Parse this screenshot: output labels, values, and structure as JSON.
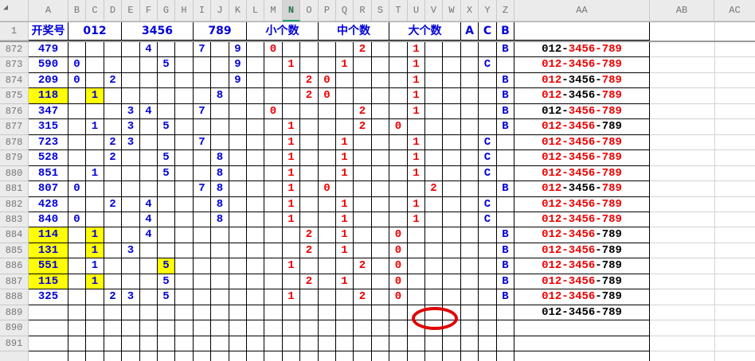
{
  "colors": {
    "digit_blue": "#0000d8",
    "count_red": "#ee0000",
    "plain_black": "#000000",
    "highlight_yellow": "#ffff00",
    "selected_green_text": "#217346",
    "selected_green_underline": "#21a366",
    "grid_black": "#000000",
    "default_gridline_gray": "#d4d4d4",
    "header_bg": "#ebebeb",
    "annotation_red": "#e00000"
  },
  "corner": {
    "select_all_icon": "select-all-triangle"
  },
  "column_headers": {
    "letters": [
      "A",
      "B",
      "C",
      "D",
      "E",
      "F",
      "G",
      "H",
      "I",
      "J",
      "K",
      "L",
      "M",
      "N",
      "O",
      "P",
      "Q",
      "R",
      "S",
      "T",
      "U",
      "V",
      "W",
      "X",
      "Y",
      "Z",
      "AA",
      "AB",
      "AC"
    ],
    "selected": "N"
  },
  "header_row": {
    "label": "1",
    "cells": [
      {
        "text": "开奖号",
        "from": "A",
        "to": "A"
      },
      {
        "text": "012",
        "from": "B",
        "to": "D"
      },
      {
        "text": "3456",
        "from": "E",
        "to": "H"
      },
      {
        "text": "789",
        "from": "I",
        "to": "K"
      },
      {
        "text": "小个数",
        "from": "L",
        "to": "O"
      },
      {
        "text": "中个数",
        "from": "P",
        "to": "S"
      },
      {
        "text": "大个数",
        "from": "T",
        "to": "W"
      },
      {
        "text": "A",
        "from": "X",
        "to": "X"
      },
      {
        "text": "C",
        "from": "Y",
        "to": "Y"
      },
      {
        "text": "B",
        "from": "Z",
        "to": "Z"
      },
      {
        "text": "",
        "from": "AA",
        "to": "AA"
      }
    ]
  },
  "rows": [
    {
      "num": "872",
      "cells": [
        {
          "col": "A",
          "v": "479"
        },
        {
          "col": "F",
          "v": "4"
        },
        {
          "col": "I",
          "v": "7"
        },
        {
          "col": "K",
          "v": "9"
        },
        {
          "col": "M",
          "v": "0"
        },
        {
          "col": "R",
          "v": "2"
        },
        {
          "col": "U",
          "v": "1"
        },
        {
          "col": "Z",
          "v": "B"
        }
      ],
      "aa": [
        {
          "t": "012",
          "c": "black"
        },
        {
          "t": "-",
          "c": "black"
        },
        {
          "t": "3456",
          "c": "red"
        },
        {
          "t": "-",
          "c": "red"
        },
        {
          "t": "789",
          "c": "red"
        }
      ]
    },
    {
      "num": "873",
      "cells": [
        {
          "col": "A",
          "v": "590"
        },
        {
          "col": "B",
          "v": "0"
        },
        {
          "col": "G",
          "v": "5"
        },
        {
          "col": "K",
          "v": "9"
        },
        {
          "col": "N",
          "v": "1"
        },
        {
          "col": "Q",
          "v": "1"
        },
        {
          "col": "U",
          "v": "1"
        },
        {
          "col": "Y",
          "v": "C"
        }
      ],
      "aa": [
        {
          "t": "012",
          "c": "red"
        },
        {
          "t": "-",
          "c": "red"
        },
        {
          "t": "3456",
          "c": "red"
        },
        {
          "t": "-",
          "c": "red"
        },
        {
          "t": "789",
          "c": "red"
        }
      ]
    },
    {
      "num": "874",
      "cells": [
        {
          "col": "A",
          "v": "209"
        },
        {
          "col": "B",
          "v": "0"
        },
        {
          "col": "D",
          "v": "2"
        },
        {
          "col": "K",
          "v": "9"
        },
        {
          "col": "O",
          "v": "2"
        },
        {
          "col": "P",
          "v": "0"
        },
        {
          "col": "U",
          "v": "1"
        },
        {
          "col": "Z",
          "v": "B"
        }
      ],
      "aa": [
        {
          "t": "012",
          "c": "red"
        },
        {
          "t": "-",
          "c": "black"
        },
        {
          "t": "3456",
          "c": "black"
        },
        {
          "t": "-",
          "c": "black"
        },
        {
          "t": "789",
          "c": "red"
        }
      ]
    },
    {
      "num": "875",
      "cells": [
        {
          "col": "A",
          "v": "118",
          "hl": true
        },
        {
          "col": "C",
          "v": "1",
          "hl": true
        },
        {
          "col": "J",
          "v": "8"
        },
        {
          "col": "O",
          "v": "2"
        },
        {
          "col": "P",
          "v": "0"
        },
        {
          "col": "U",
          "v": "1"
        },
        {
          "col": "Z",
          "v": "B"
        }
      ],
      "aa": [
        {
          "t": "012",
          "c": "red"
        },
        {
          "t": "-",
          "c": "black"
        },
        {
          "t": "3456",
          "c": "black"
        },
        {
          "t": "-",
          "c": "black"
        },
        {
          "t": "789",
          "c": "red"
        }
      ]
    },
    {
      "num": "876",
      "cells": [
        {
          "col": "A",
          "v": "347"
        },
        {
          "col": "E",
          "v": "3"
        },
        {
          "col": "F",
          "v": "4"
        },
        {
          "col": "I",
          "v": "7"
        },
        {
          "col": "M",
          "v": "0"
        },
        {
          "col": "R",
          "v": "2"
        },
        {
          "col": "U",
          "v": "1"
        },
        {
          "col": "Z",
          "v": "B"
        }
      ],
      "aa": [
        {
          "t": "012",
          "c": "black"
        },
        {
          "t": "-",
          "c": "black"
        },
        {
          "t": "3456",
          "c": "red"
        },
        {
          "t": "-",
          "c": "red"
        },
        {
          "t": "789",
          "c": "red"
        }
      ]
    },
    {
      "num": "877",
      "cells": [
        {
          "col": "A",
          "v": "315"
        },
        {
          "col": "C",
          "v": "1"
        },
        {
          "col": "E",
          "v": "3"
        },
        {
          "col": "G",
          "v": "5"
        },
        {
          "col": "N",
          "v": "1"
        },
        {
          "col": "R",
          "v": "2"
        },
        {
          "col": "T",
          "v": "0"
        },
        {
          "col": "Z",
          "v": "B"
        }
      ],
      "aa": [
        {
          "t": "012",
          "c": "red"
        },
        {
          "t": "-",
          "c": "red"
        },
        {
          "t": "3456",
          "c": "red"
        },
        {
          "t": "-",
          "c": "black"
        },
        {
          "t": "789",
          "c": "black"
        }
      ]
    },
    {
      "num": "878",
      "cells": [
        {
          "col": "A",
          "v": "723"
        },
        {
          "col": "D",
          "v": "2"
        },
        {
          "col": "E",
          "v": "3"
        },
        {
          "col": "I",
          "v": "7"
        },
        {
          "col": "N",
          "v": "1"
        },
        {
          "col": "Q",
          "v": "1"
        },
        {
          "col": "U",
          "v": "1"
        },
        {
          "col": "Y",
          "v": "C"
        }
      ],
      "aa": [
        {
          "t": "012",
          "c": "red"
        },
        {
          "t": "-",
          "c": "red"
        },
        {
          "t": "3456",
          "c": "red"
        },
        {
          "t": "-",
          "c": "red"
        },
        {
          "t": "789",
          "c": "red"
        }
      ]
    },
    {
      "num": "879",
      "cells": [
        {
          "col": "A",
          "v": "528"
        },
        {
          "col": "D",
          "v": "2"
        },
        {
          "col": "G",
          "v": "5"
        },
        {
          "col": "J",
          "v": "8"
        },
        {
          "col": "N",
          "v": "1"
        },
        {
          "col": "Q",
          "v": "1"
        },
        {
          "col": "U",
          "v": "1"
        },
        {
          "col": "Y",
          "v": "C"
        }
      ],
      "aa": [
        {
          "t": "012",
          "c": "red"
        },
        {
          "t": "-",
          "c": "red"
        },
        {
          "t": "3456",
          "c": "red"
        },
        {
          "t": "-",
          "c": "red"
        },
        {
          "t": "789",
          "c": "red"
        }
      ]
    },
    {
      "num": "880",
      "cells": [
        {
          "col": "A",
          "v": "851"
        },
        {
          "col": "C",
          "v": "1"
        },
        {
          "col": "G",
          "v": "5"
        },
        {
          "col": "J",
          "v": "8"
        },
        {
          "col": "N",
          "v": "1"
        },
        {
          "col": "Q",
          "v": "1"
        },
        {
          "col": "U",
          "v": "1"
        },
        {
          "col": "Y",
          "v": "C"
        }
      ],
      "aa": [
        {
          "t": "012",
          "c": "red"
        },
        {
          "t": "-",
          "c": "red"
        },
        {
          "t": "3456",
          "c": "red"
        },
        {
          "t": "-",
          "c": "red"
        },
        {
          "t": "789",
          "c": "red"
        }
      ]
    },
    {
      "num": "881",
      "cells": [
        {
          "col": "A",
          "v": "807"
        },
        {
          "col": "B",
          "v": "0"
        },
        {
          "col": "I",
          "v": "7"
        },
        {
          "col": "J",
          "v": "8"
        },
        {
          "col": "N",
          "v": "1"
        },
        {
          "col": "P",
          "v": "0"
        },
        {
          "col": "V",
          "v": "2"
        },
        {
          "col": "Z",
          "v": "B"
        }
      ],
      "aa": [
        {
          "t": "012",
          "c": "red"
        },
        {
          "t": "-",
          "c": "black"
        },
        {
          "t": "3456",
          "c": "black"
        },
        {
          "t": "-",
          "c": "black"
        },
        {
          "t": "789",
          "c": "red"
        }
      ]
    },
    {
      "num": "882",
      "cells": [
        {
          "col": "A",
          "v": "428"
        },
        {
          "col": "D",
          "v": "2"
        },
        {
          "col": "F",
          "v": "4"
        },
        {
          "col": "J",
          "v": "8"
        },
        {
          "col": "N",
          "v": "1"
        },
        {
          "col": "Q",
          "v": "1"
        },
        {
          "col": "U",
          "v": "1"
        },
        {
          "col": "Y",
          "v": "C"
        }
      ],
      "aa": [
        {
          "t": "012",
          "c": "red"
        },
        {
          "t": "-",
          "c": "red"
        },
        {
          "t": "3456",
          "c": "red"
        },
        {
          "t": "-",
          "c": "red"
        },
        {
          "t": "789",
          "c": "red"
        }
      ]
    },
    {
      "num": "883",
      "cells": [
        {
          "col": "A",
          "v": "840"
        },
        {
          "col": "B",
          "v": "0"
        },
        {
          "col": "F",
          "v": "4"
        },
        {
          "col": "J",
          "v": "8"
        },
        {
          "col": "N",
          "v": "1"
        },
        {
          "col": "Q",
          "v": "1"
        },
        {
          "col": "U",
          "v": "1"
        },
        {
          "col": "Y",
          "v": "C"
        }
      ],
      "aa": [
        {
          "t": "012",
          "c": "red"
        },
        {
          "t": "-",
          "c": "red"
        },
        {
          "t": "3456",
          "c": "red"
        },
        {
          "t": "-",
          "c": "red"
        },
        {
          "t": "789",
          "c": "red"
        }
      ]
    },
    {
      "num": "884",
      "cells": [
        {
          "col": "A",
          "v": "114",
          "hl": true
        },
        {
          "col": "C",
          "v": "1",
          "hl": true
        },
        {
          "col": "F",
          "v": "4"
        },
        {
          "col": "O",
          "v": "2"
        },
        {
          "col": "Q",
          "v": "1"
        },
        {
          "col": "T",
          "v": "0"
        },
        {
          "col": "Z",
          "v": "B"
        }
      ],
      "aa": [
        {
          "t": "012",
          "c": "red"
        },
        {
          "t": "-",
          "c": "red"
        },
        {
          "t": "3456",
          "c": "red"
        },
        {
          "t": "-",
          "c": "black"
        },
        {
          "t": "789",
          "c": "black"
        }
      ]
    },
    {
      "num": "885",
      "cells": [
        {
          "col": "A",
          "v": "131",
          "hl": true
        },
        {
          "col": "C",
          "v": "1",
          "hl": true
        },
        {
          "col": "E",
          "v": "3"
        },
        {
          "col": "O",
          "v": "2"
        },
        {
          "col": "Q",
          "v": "1"
        },
        {
          "col": "T",
          "v": "0"
        },
        {
          "col": "Z",
          "v": "B"
        }
      ],
      "aa": [
        {
          "t": "012",
          "c": "red"
        },
        {
          "t": "-",
          "c": "red"
        },
        {
          "t": "3456",
          "c": "red"
        },
        {
          "t": "-",
          "c": "black"
        },
        {
          "t": "789",
          "c": "black"
        }
      ]
    },
    {
      "num": "886",
      "cells": [
        {
          "col": "A",
          "v": "551",
          "hl": true
        },
        {
          "col": "C",
          "v": "1"
        },
        {
          "col": "G",
          "v": "5",
          "hl": true
        },
        {
          "col": "N",
          "v": "1"
        },
        {
          "col": "R",
          "v": "2"
        },
        {
          "col": "T",
          "v": "0"
        },
        {
          "col": "Z",
          "v": "B"
        }
      ],
      "aa": [
        {
          "t": "012",
          "c": "red"
        },
        {
          "t": "-",
          "c": "red"
        },
        {
          "t": "3456",
          "c": "red"
        },
        {
          "t": "-",
          "c": "black"
        },
        {
          "t": "789",
          "c": "black"
        }
      ]
    },
    {
      "num": "887",
      "cells": [
        {
          "col": "A",
          "v": "115",
          "hl": true
        },
        {
          "col": "C",
          "v": "1",
          "hl": true
        },
        {
          "col": "G",
          "v": "5"
        },
        {
          "col": "O",
          "v": "2"
        },
        {
          "col": "Q",
          "v": "1"
        },
        {
          "col": "T",
          "v": "0"
        },
        {
          "col": "Z",
          "v": "B"
        }
      ],
      "aa": [
        {
          "t": "012",
          "c": "red"
        },
        {
          "t": "-",
          "c": "red"
        },
        {
          "t": "3456",
          "c": "red"
        },
        {
          "t": "-",
          "c": "black"
        },
        {
          "t": "789",
          "c": "black"
        }
      ]
    },
    {
      "num": "888",
      "cells": [
        {
          "col": "A",
          "v": "325"
        },
        {
          "col": "D",
          "v": "2"
        },
        {
          "col": "E",
          "v": "3"
        },
        {
          "col": "G",
          "v": "5"
        },
        {
          "col": "N",
          "v": "1"
        },
        {
          "col": "R",
          "v": "2"
        },
        {
          "col": "T",
          "v": "0"
        },
        {
          "col": "Z",
          "v": "B"
        }
      ],
      "aa": [
        {
          "t": "012",
          "c": "red"
        },
        {
          "t": "-",
          "c": "red"
        },
        {
          "t": "3456",
          "c": "red"
        },
        {
          "t": "-",
          "c": "black"
        },
        {
          "t": "789",
          "c": "black"
        }
      ]
    },
    {
      "num": "889",
      "cells": [],
      "aa": [
        {
          "t": "012",
          "c": "black"
        },
        {
          "t": "-",
          "c": "black"
        },
        {
          "t": "3456",
          "c": "black"
        },
        {
          "t": "-",
          "c": "black"
        },
        {
          "t": "789",
          "c": "black"
        }
      ]
    },
    {
      "num": "890",
      "cells": [],
      "aa": []
    },
    {
      "num": "891",
      "cells": [],
      "aa": []
    },
    {
      "num": "",
      "cells": [],
      "aa": [],
      "partial": true
    }
  ],
  "annotation": {
    "shape": "red-ellipse",
    "at_row": "889",
    "at_cols": "U-V"
  }
}
